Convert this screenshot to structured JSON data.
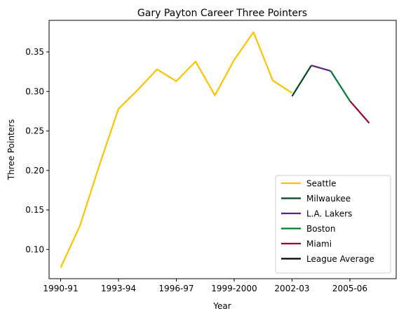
{
  "chart_data": {
    "type": "line",
    "title": "Gary Payton Career Three Pointers",
    "xlabel": "Year",
    "ylabel": "Three Pointers",
    "xlim": [
      -0.6,
      17.4
    ],
    "ylim": [
      0.063,
      0.39
    ],
    "x_tick_labels": [
      {
        "x": 0,
        "label": "1990-91"
      },
      {
        "x": 3,
        "label": "1993-94"
      },
      {
        "x": 6,
        "label": "1996-97"
      },
      {
        "x": 9,
        "label": "1999-2000"
      },
      {
        "x": 12,
        "label": "2002-03"
      },
      {
        "x": 15,
        "label": "2005-06"
      }
    ],
    "y_ticks": [
      0.1,
      0.15,
      0.2,
      0.25,
      0.3,
      0.35
    ],
    "y_tick_labels": [
      "0.10",
      "0.15",
      "0.20",
      "0.25",
      "0.30",
      "0.35"
    ],
    "grid": false,
    "legend_position": "lower-right",
    "series": [
      {
        "name": "Seattle",
        "color": "#fdc200",
        "x": [
          0,
          1,
          2,
          3,
          4,
          5,
          6,
          7,
          8,
          9,
          10,
          11,
          12
        ],
        "y": [
          0.077,
          0.13,
          0.206,
          0.278,
          0.302,
          0.328,
          0.313,
          0.338,
          0.295,
          0.34,
          0.375,
          0.314,
          0.298
        ]
      },
      {
        "name": "Milwaukee",
        "color": "#00471b",
        "x": [
          12,
          13
        ],
        "y": [
          0.294,
          0.333
        ]
      },
      {
        "name": "L.A. Lakers",
        "color": "#552583",
        "x": [
          13,
          14
        ],
        "y": [
          0.333,
          0.326
        ]
      },
      {
        "name": "Boston",
        "color": "#007a33",
        "x": [
          14,
          15
        ],
        "y": [
          0.326,
          0.288
        ]
      },
      {
        "name": "Miami",
        "color": "#98002e",
        "x": [
          15,
          16
        ],
        "y": [
          0.288,
          0.26
        ]
      },
      {
        "name": "League Average",
        "color": "#000000",
        "x": [],
        "y": []
      }
    ]
  }
}
